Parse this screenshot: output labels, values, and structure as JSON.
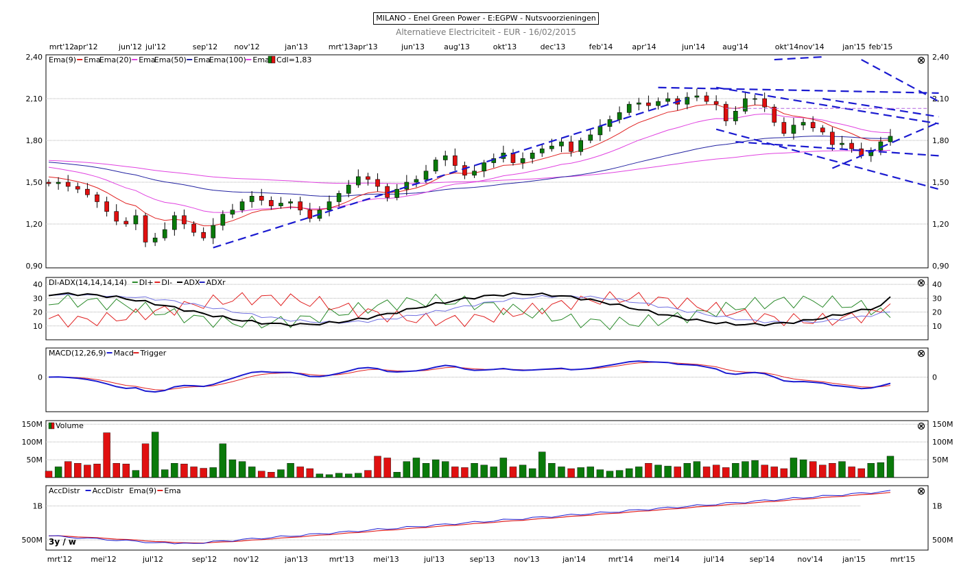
{
  "header": {
    "title": "MILANO - Enel Green Power - E:EGPW - Nutsvoorzieningen",
    "subtitle": "Alternatieve Electriciteit - EUR - 16/02/2015"
  },
  "period_label": "3y / w",
  "top_axis_labels": [
    "mrt'12",
    "apr'12",
    "jun'12",
    "jul'12",
    "sep'12",
    "nov'12",
    "jan'13",
    "mrt'13",
    "apr'13",
    "jun'13",
    "aug'13",
    "okt'13",
    "dec'13",
    "feb'14",
    "apr'14",
    "jun'14",
    "aug'14",
    "okt'14",
    "nov'14",
    "jan'15",
    "feb'15"
  ],
  "bottom_axis_labels": [
    "mrt'12",
    "mei'12",
    "jul'12",
    "sep'12",
    "nov'12",
    "jan'13",
    "mrt'13",
    "mei'13",
    "jul'13",
    "sep'13",
    "nov'13",
    "jan'14",
    "mrt'14",
    "mei'14",
    "jul'14",
    "sep'14",
    "nov'14",
    "jan'15",
    "mrt'15"
  ],
  "panels": {
    "price": {
      "legend": [
        {
          "text": "Ema(9)",
          "color": "#000000"
        },
        {
          "text": "Ema",
          "color": "#e02020"
        },
        {
          "text": "Ema(20)",
          "color": "#000000"
        },
        {
          "text": "Ema",
          "color": "#e040e0"
        },
        {
          "text": "Ema(50)",
          "color": "#000000"
        },
        {
          "text": "Ema",
          "color": "#2020a0"
        },
        {
          "text": "Ema(100)",
          "color": "#000000"
        },
        {
          "text": "Ema",
          "color": "#e040e0"
        },
        {
          "text": "Cdl=1,83",
          "color": "#000000"
        }
      ],
      "ticks": [
        "2,40",
        "2,10",
        "1,80",
        "1,50",
        "1,20",
        "0,90"
      ]
    },
    "adx": {
      "legend": [
        {
          "text": "DI-ADX(14,14,14,14)",
          "color": "#000000"
        },
        {
          "text": "DI+",
          "color": "#2a8a2a"
        },
        {
          "text": "DI-",
          "color": "#e02020"
        },
        {
          "text": "ADX",
          "color": "#000000"
        },
        {
          "text": "ADXr",
          "color": "#2020c0"
        }
      ],
      "ticks": [
        "40",
        "30",
        "20",
        "10"
      ]
    },
    "macd": {
      "legend": [
        {
          "text": "MACD(12,26,9)",
          "color": "#000000"
        },
        {
          "text": "Macd",
          "color": "#1a1ad0"
        },
        {
          "text": "Trigger",
          "color": "#e02020"
        }
      ],
      "ticks": [
        "0"
      ]
    },
    "volume": {
      "legend": [
        {
          "text": "Volume",
          "color": "#000000"
        }
      ],
      "ticks": [
        "150M",
        "100M",
        "50M"
      ]
    },
    "accdistr": {
      "legend": [
        {
          "text": "AccDistr",
          "color": "#000000"
        },
        {
          "text": "AccDistr",
          "color": "#1a1ad0"
        },
        {
          "text": "Ema(9)",
          "color": "#000000"
        },
        {
          "text": "Ema",
          "color": "#e02020"
        }
      ],
      "ticks": [
        "1B",
        "500M"
      ]
    }
  },
  "colors": {
    "up": "#0a7a0a",
    "down": "#e01010",
    "ema9": "#e02020",
    "ema20": "#e040e0",
    "ema50": "#2020a0",
    "ema100": "#e040e0",
    "trend": "#1a1ad0"
  },
  "chart_data": {
    "type": "candlestick",
    "interval": "weekly",
    "range": "mrt'12 - feb'15",
    "price_ylim": [
      0.9,
      2.4
    ],
    "approx_close": [
      1.49,
      1.5,
      1.47,
      1.45,
      1.41,
      1.36,
      1.29,
      1.22,
      1.2,
      1.26,
      1.07,
      1.1,
      1.16,
      1.26,
      1.2,
      1.14,
      1.1,
      1.19,
      1.27,
      1.3,
      1.36,
      1.4,
      1.37,
      1.33,
      1.35,
      1.36,
      1.3,
      1.24,
      1.3,
      1.36,
      1.42,
      1.48,
      1.54,
      1.52,
      1.47,
      1.39,
      1.45,
      1.5,
      1.52,
      1.58,
      1.66,
      1.69,
      1.62,
      1.55,
      1.58,
      1.64,
      1.67,
      1.71,
      1.64,
      1.67,
      1.71,
      1.74,
      1.76,
      1.79,
      1.72,
      1.8,
      1.84,
      1.9,
      1.95,
      2.0,
      2.06,
      2.07,
      2.05,
      2.08,
      2.1,
      2.06,
      2.11,
      2.12,
      2.08,
      2.06,
      1.94,
      2.01,
      2.1,
      2.1,
      2.04,
      1.93,
      1.85,
      1.91,
      1.93,
      1.89,
      1.86,
      1.77,
      1.78,
      1.74,
      1.69,
      1.73,
      1.79,
      1.83
    ],
    "volume_approx_M": [
      18,
      30,
      45,
      40,
      35,
      38,
      126,
      40,
      38,
      20,
      95,
      128,
      22,
      40,
      38,
      30,
      26,
      28,
      95,
      50,
      45,
      30,
      18,
      15,
      22,
      40,
      30,
      25,
      10,
      8,
      12,
      10,
      12,
      20,
      60,
      55,
      15,
      45,
      55,
      40,
      50,
      45,
      30,
      28,
      40,
      35,
      30,
      55,
      30,
      35,
      25,
      72,
      40,
      30,
      25,
      28,
      30,
      22,
      18,
      20,
      25,
      30,
      40,
      35,
      32,
      30,
      40,
      45,
      30,
      35,
      28,
      40,
      45,
      48,
      35,
      30,
      25,
      55,
      50,
      45,
      35,
      40,
      45,
      30,
      25,
      40,
      42,
      60
    ],
    "indicators": {
      "adx_last": 31,
      "di_plus_last": 16,
      "di_minus_last": 26,
      "macd_zero_line": 0
    },
    "accdistr_ticks": [
      "1B",
      "500M"
    ]
  }
}
